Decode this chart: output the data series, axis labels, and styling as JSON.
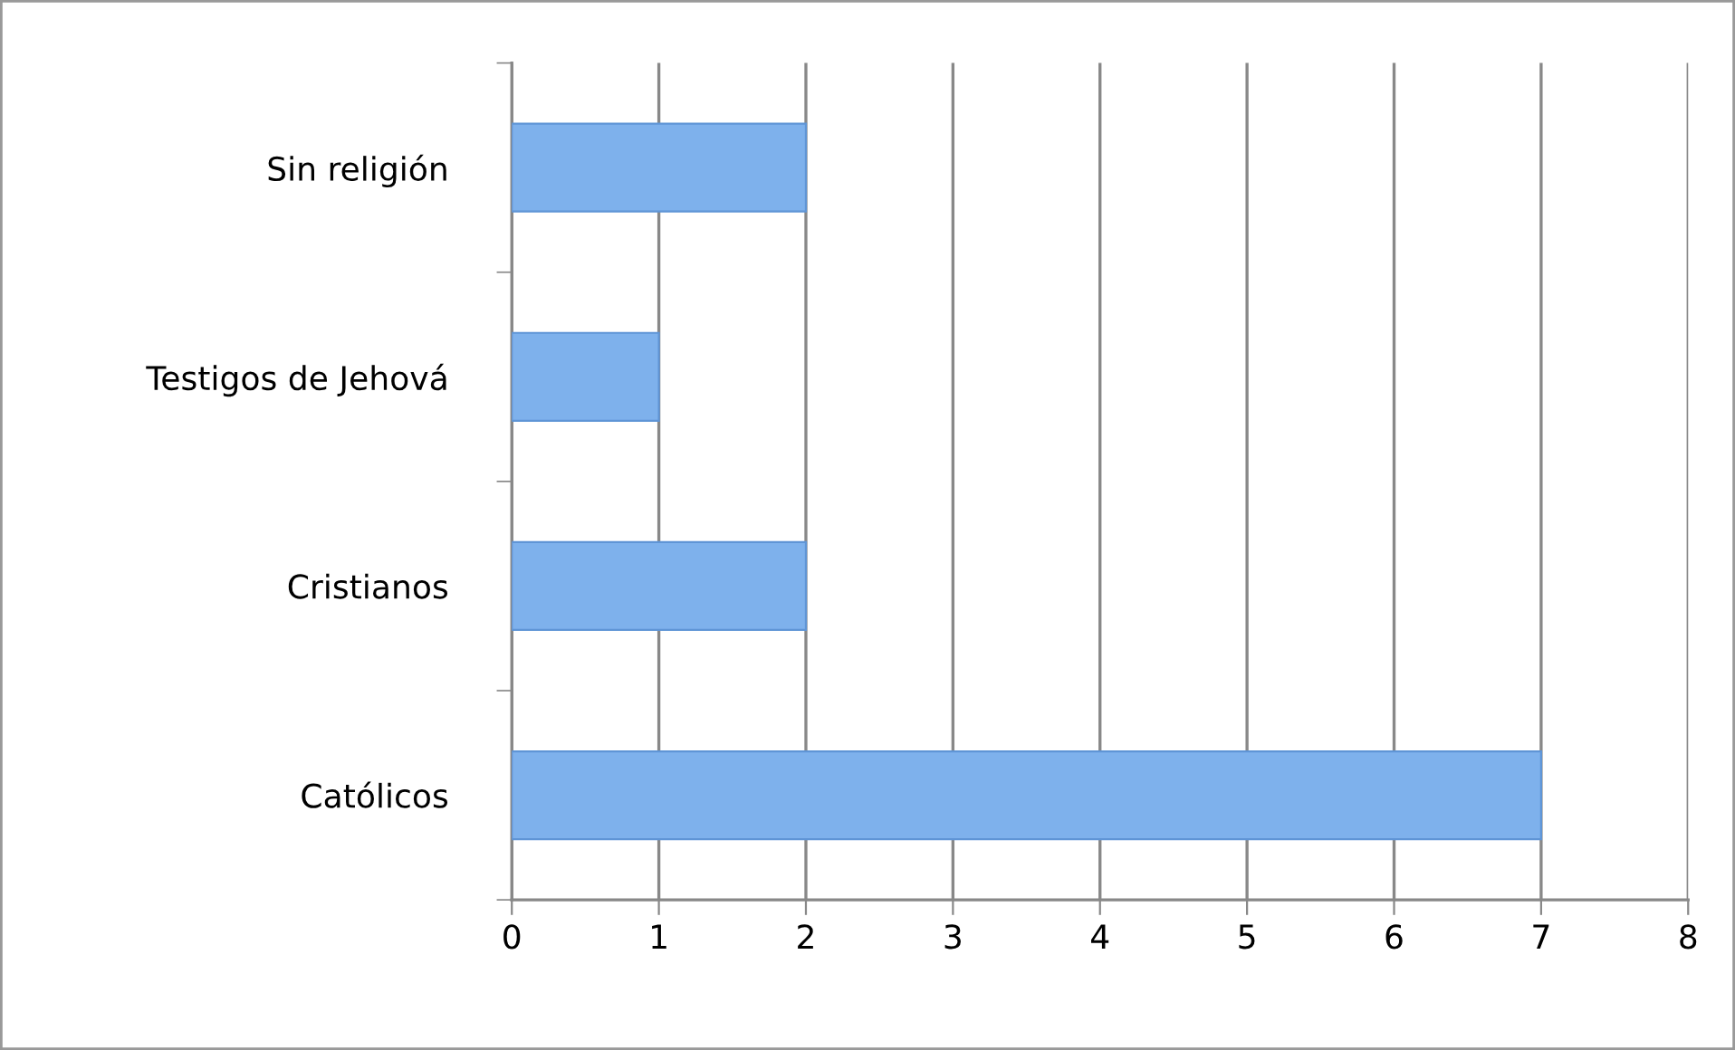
{
  "chart_data": {
    "type": "bar",
    "orientation": "horizontal",
    "categories": [
      "Sin religión",
      "Testigos de Jehová",
      "Cristianos",
      "Católicos"
    ],
    "values": [
      2,
      1,
      2,
      7
    ],
    "color": "#7eb1ec",
    "xlim": [
      0,
      8
    ],
    "xticks": [
      0,
      1,
      2,
      3,
      4,
      5,
      6,
      7,
      8
    ],
    "grid": "x",
    "legend": false
  }
}
